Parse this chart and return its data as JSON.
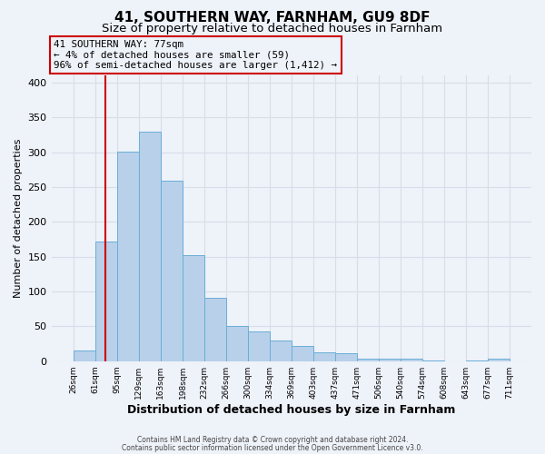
{
  "title": "41, SOUTHERN WAY, FARNHAM, GU9 8DF",
  "subtitle": "Size of property relative to detached houses in Farnham",
  "xlabel": "Distribution of detached houses by size in Farnham",
  "ylabel": "Number of detached properties",
  "bin_edges": [
    26,
    61,
    95,
    129,
    163,
    198,
    232,
    266,
    300,
    334,
    369,
    403,
    437,
    471,
    506,
    540,
    574,
    608,
    643,
    677,
    711
  ],
  "heights": [
    15,
    172,
    301,
    329,
    259,
    152,
    91,
    50,
    43,
    29,
    22,
    13,
    11,
    3,
    4,
    4,
    1,
    0,
    1,
    3
  ],
  "tick_labels": [
    "26sqm",
    "61sqm",
    "95sqm",
    "129sqm",
    "163sqm",
    "198sqm",
    "232sqm",
    "266sqm",
    "300sqm",
    "334sqm",
    "369sqm",
    "403sqm",
    "437sqm",
    "471sqm",
    "506sqm",
    "540sqm",
    "574sqm",
    "608sqm",
    "643sqm",
    "677sqm",
    "711sqm"
  ],
  "bar_color": "#b8d0ea",
  "bar_edge_color": "#6aaed6",
  "property_line_x": 77,
  "property_line_color": "#cc0000",
  "annotation_line1": "41 SOUTHERN WAY: 77sqm",
  "annotation_line2": "← 4% of detached houses are smaller (59)",
  "annotation_line3": "96% of semi-detached houses are larger (1,412) →",
  "annotation_box_edge_color": "#cc0000",
  "ylim": [
    0,
    410
  ],
  "yticks": [
    0,
    50,
    100,
    150,
    200,
    250,
    300,
    350,
    400
  ],
  "background_color": "#eef2f9",
  "grid_color": "#d8dde8",
  "footer_line1": "Contains HM Land Registry data © Crown copyright and database right 2024.",
  "footer_line2": "Contains public sector information licensed under the Open Government Licence v3.0.",
  "title_fontsize": 11,
  "subtitle_fontsize": 9.5,
  "ylabel_fontsize": 8,
  "xlabel_fontsize": 9
}
